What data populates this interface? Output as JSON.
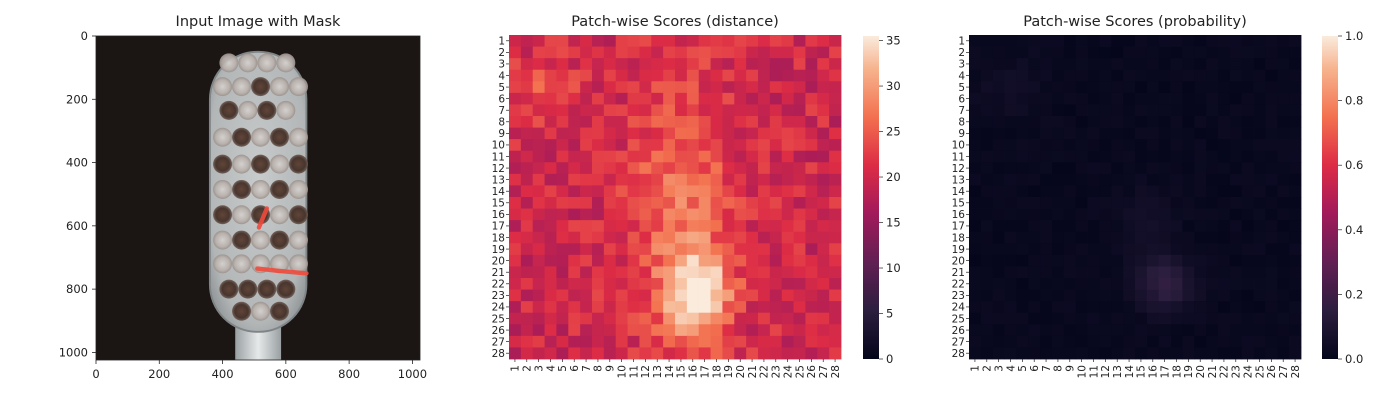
{
  "chart_data": [
    {
      "type": "image",
      "title": "Input Image with Mask",
      "xlim": [
        0,
        1024
      ],
      "ylim": [
        1024,
        0
      ],
      "xticks": [
        0,
        200,
        400,
        600,
        800,
        1000
      ],
      "yticks": [
        0,
        200,
        400,
        600,
        800,
        1000
      ],
      "grid": false,
      "image_content": "toothbrush-head-with-anomaly-mask",
      "mask_color": "#f04a3c",
      "mask_regions": [
        {
          "shape": "stroke",
          "points": [
            [
              515,
              605
            ],
            [
              540,
              545
            ]
          ]
        },
        {
          "shape": "stroke",
          "points": [
            [
              510,
              735
            ],
            [
              575,
              742
            ],
            [
              640,
              748
            ],
            [
              665,
              750
            ]
          ]
        }
      ]
    },
    {
      "type": "heatmap",
      "title": "Patch-wise Scores (distance)",
      "rows": 28,
      "cols": 28,
      "row_labels": [
        "1",
        "2",
        "3",
        "4",
        "5",
        "6",
        "7",
        "8",
        "9",
        "10",
        "11",
        "12",
        "13",
        "14",
        "15",
        "16",
        "17",
        "18",
        "19",
        "20",
        "21",
        "22",
        "23",
        "24",
        "25",
        "26",
        "27",
        "28"
      ],
      "col_labels": [
        "1",
        "2",
        "3",
        "4",
        "5",
        "6",
        "7",
        "8",
        "9",
        "10",
        "11",
        "12",
        "13",
        "14",
        "15",
        "16",
        "17",
        "18",
        "19",
        "20",
        "21",
        "22",
        "23",
        "24",
        "25",
        "26",
        "27",
        "28"
      ],
      "colormap": "rocket",
      "vmin": 0,
      "vmax": 35.5,
      "colorbar_ticks": [
        "0",
        "5",
        "10",
        "15",
        "20",
        "25",
        "30",
        "35"
      ],
      "colorbar_values": [
        0,
        5,
        10,
        15,
        20,
        25,
        30,
        35
      ],
      "base_value": 20,
      "hotspots": [
        {
          "row": 23,
          "col": 16.5,
          "row_spread": 2.5,
          "col_spread": 1.8,
          "peak": 15
        },
        {
          "row": 16,
          "col": 15,
          "row_spread": 8,
          "col_spread": 3,
          "peak": 7
        },
        {
          "row": 5.5,
          "col": 3.5,
          "row_spread": 2.2,
          "col_spread": 2,
          "peak": 4
        }
      ]
    },
    {
      "type": "heatmap",
      "title": "Patch-wise Scores (probability)",
      "rows": 28,
      "cols": 28,
      "row_labels": [
        "1",
        "2",
        "3",
        "4",
        "5",
        "6",
        "7",
        "8",
        "9",
        "10",
        "11",
        "12",
        "13",
        "14",
        "15",
        "16",
        "17",
        "18",
        "19",
        "20",
        "21",
        "22",
        "23",
        "24",
        "25",
        "26",
        "27",
        "28"
      ],
      "col_labels": [
        "1",
        "2",
        "3",
        "4",
        "5",
        "6",
        "7",
        "8",
        "9",
        "10",
        "11",
        "12",
        "13",
        "14",
        "15",
        "16",
        "17",
        "18",
        "19",
        "20",
        "21",
        "22",
        "23",
        "24",
        "25",
        "26",
        "27",
        "28"
      ],
      "colormap": "rocket",
      "vmin": 0,
      "vmax": 1.0,
      "colorbar_ticks": [
        "0.0",
        "0.2",
        "0.4",
        "0.6",
        "0.8",
        "1.0"
      ],
      "colorbar_values": [
        0,
        0.2,
        0.4,
        0.6,
        0.8,
        1.0
      ],
      "base_value": 0.02,
      "hotspots": [
        {
          "row": 22,
          "col": 17,
          "row_spread": 1.6,
          "col_spread": 1.6,
          "peak": 0.15
        },
        {
          "row": 17,
          "col": 15.5,
          "row_spread": 2,
          "col_spread": 1.5,
          "peak": 0.05
        },
        {
          "row": 5,
          "col": 4,
          "row_spread": 2,
          "col_spread": 2,
          "peak": 0.03
        }
      ]
    }
  ]
}
